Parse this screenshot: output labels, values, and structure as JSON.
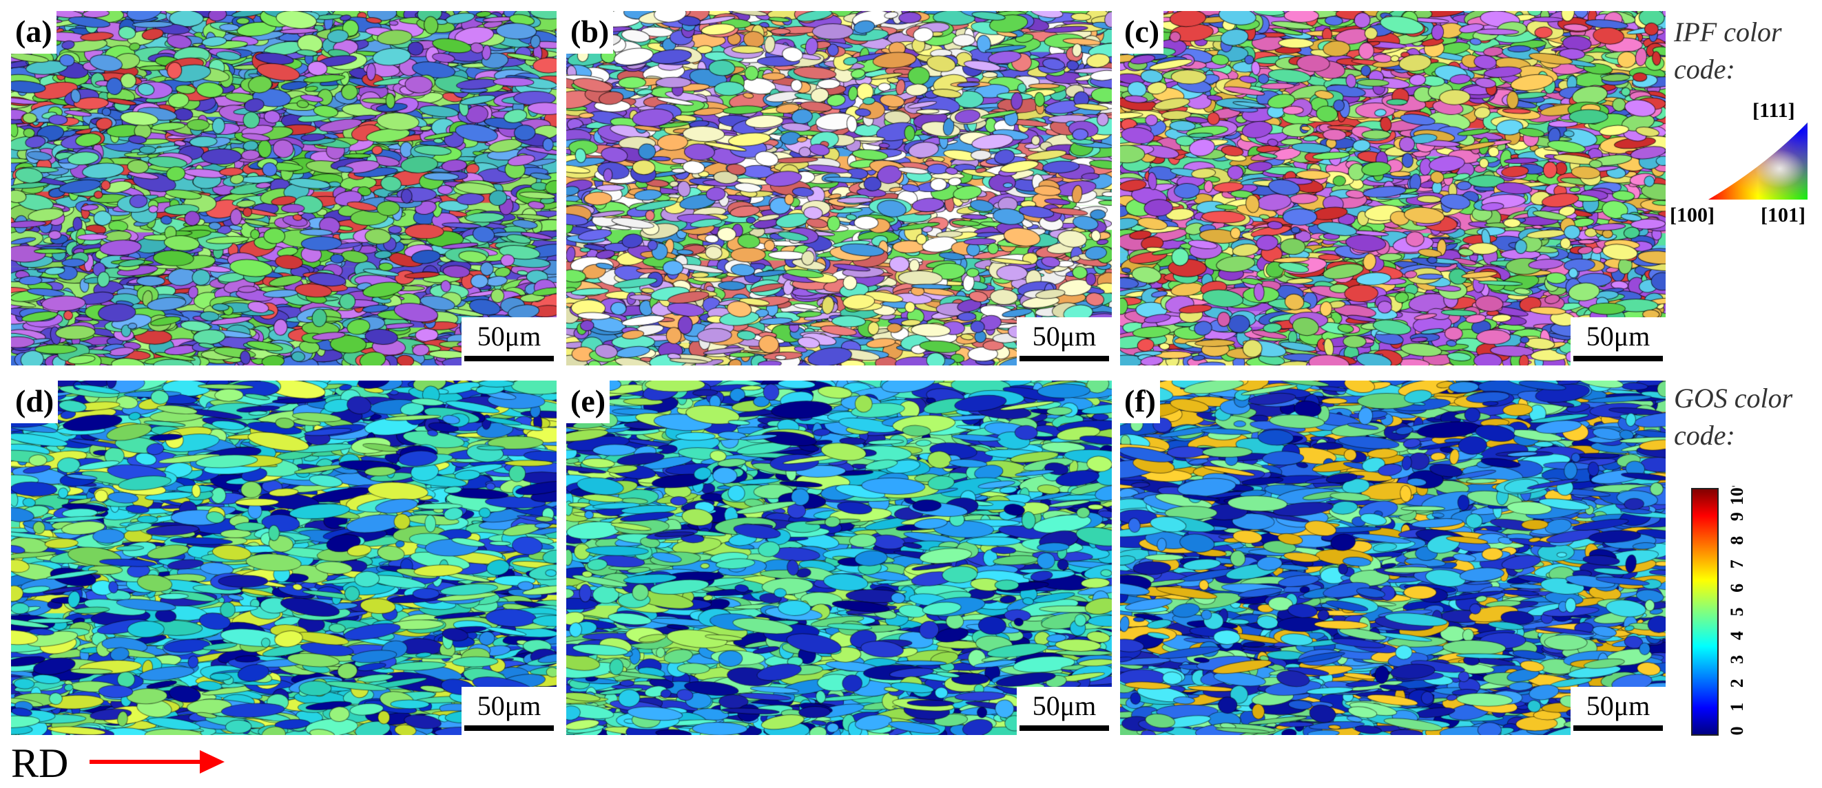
{
  "panels": [
    {
      "id": "a",
      "label": "(a)",
      "scale_bar": "50μm",
      "map": "ipf"
    },
    {
      "id": "b",
      "label": "(b)",
      "scale_bar": "50μm",
      "map": "ipf"
    },
    {
      "id": "c",
      "label": "(c)",
      "scale_bar": "50μm",
      "map": "ipf"
    },
    {
      "id": "d",
      "label": "(d)",
      "scale_bar": "50μm",
      "map": "gos"
    },
    {
      "id": "e",
      "label": "(e)",
      "scale_bar": "50μm",
      "map": "gos"
    },
    {
      "id": "f",
      "label": "(f)",
      "scale_bar": "50μm",
      "map": "gos"
    }
  ],
  "ipf_legend": {
    "title_line1": "IPF color",
    "title_line2": "code:",
    "corner_111": "[111]",
    "corner_100": "[100]",
    "corner_101": "[101]",
    "colors": {
      "c100": "#ff0000",
      "c101": "#00ff00",
      "c111": "#0000ff"
    }
  },
  "gos_legend": {
    "title_line1": "GOS color",
    "title_line2": "code:",
    "ticks": [
      "0",
      "1",
      "2",
      "3",
      "4",
      "5",
      "6",
      "7",
      "8",
      "9",
      "10°"
    ],
    "range": [
      0,
      10
    ]
  },
  "direction": {
    "label": "RD",
    "arrow_color": "#ff0000"
  }
}
